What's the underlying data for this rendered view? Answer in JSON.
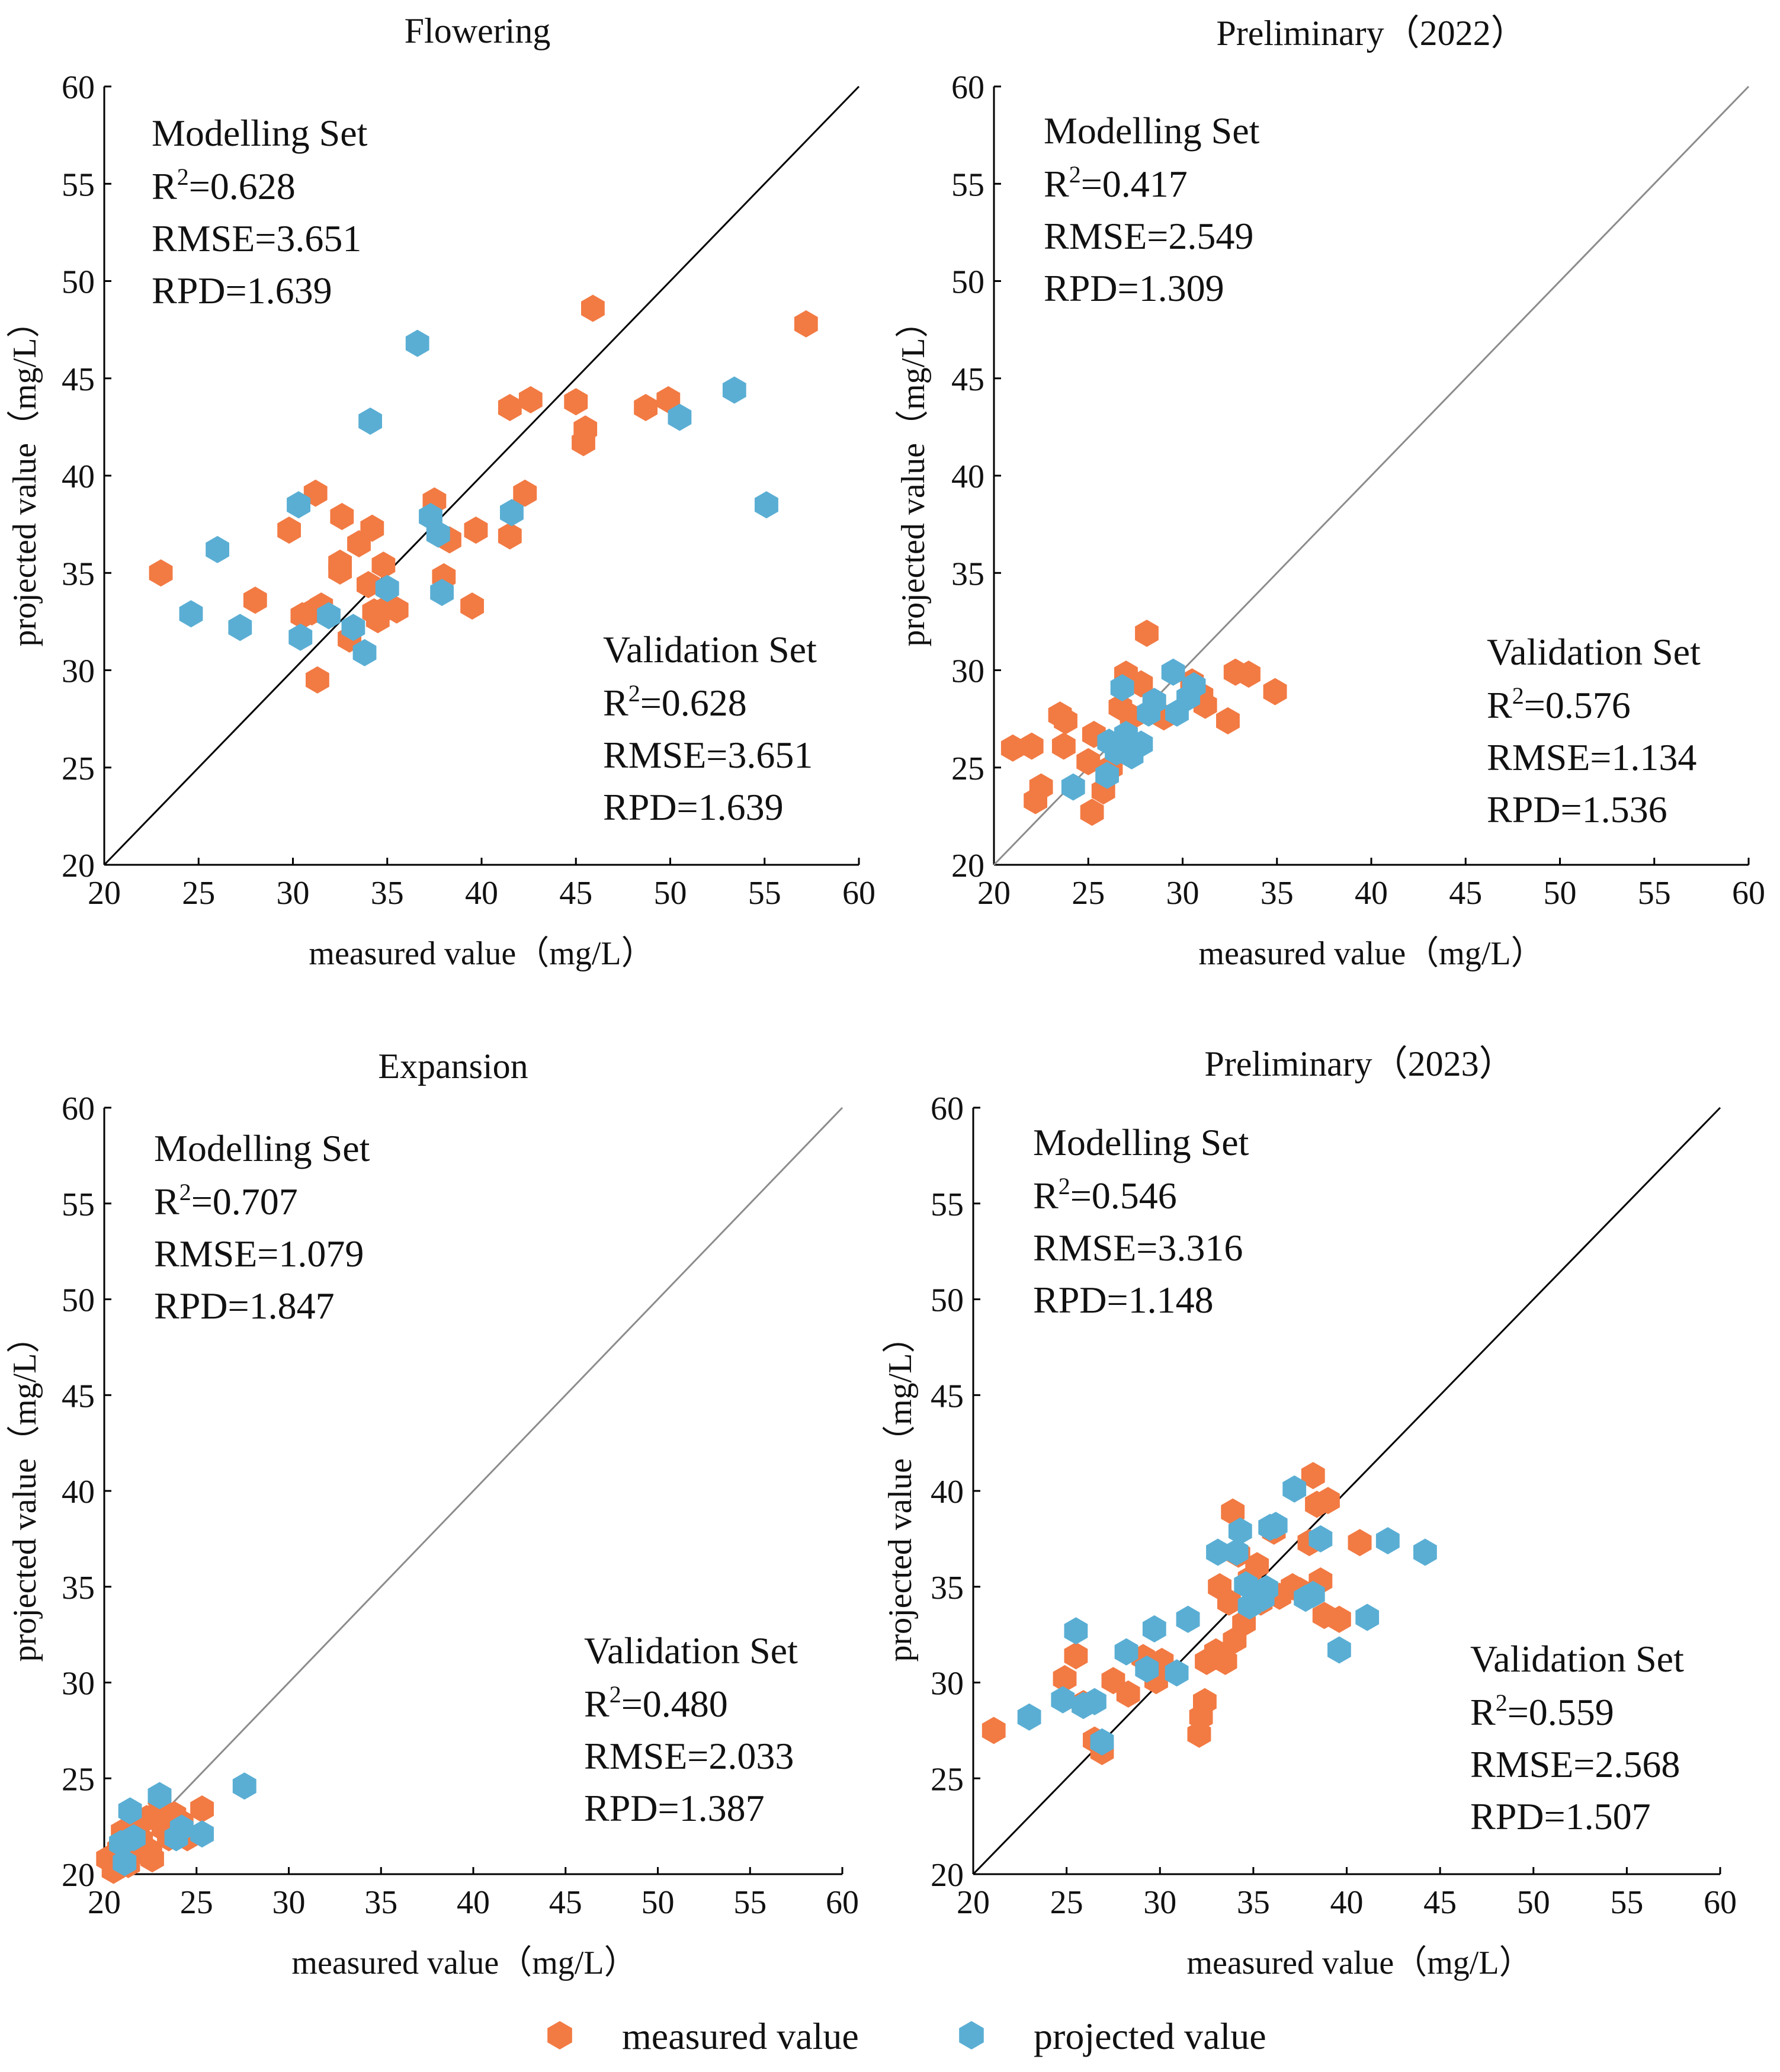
{
  "colors": {
    "measured": "#F27A43",
    "projected": "#5AAED4",
    "axis": "#000000",
    "diag_dark": "#000000",
    "diag_light": "#8c8c8c"
  },
  "legend": {
    "measured_label": "measured value",
    "projected_label": "projected value"
  },
  "chart_data": [
    {
      "type": "scatter",
      "title": "Flowering",
      "xlabel": "measured value（mg/L）",
      "ylabel": "projected value（mg/L）",
      "xlim": [
        20,
        60
      ],
      "ylim": [
        20,
        60
      ],
      "ticks": [
        "20",
        "25",
        "30",
        "35",
        "40",
        "45",
        "50",
        "55",
        "60"
      ],
      "diagonal_style": "dark",
      "modelling": {
        "heading": "Modelling Set",
        "r2_prefix": "R",
        "r2_sup": "2",
        "r2_value": "=0.628",
        "rmse": "RMSE=3.651",
        "rpd": "RPD=1.639"
      },
      "validation": {
        "heading": "Validation Set",
        "r2_prefix": "R",
        "r2_sup": "2",
        "r2_value": "=0.628",
        "rmse": "RMSE=3.651",
        "rpd": "RPD=1.639"
      },
      "series": [
        {
          "name": "measured value",
          "points": [
            [
              23,
              35
            ],
            [
              28,
              33.6
            ],
            [
              29.8,
              37.2
            ],
            [
              30.5,
              32.8
            ],
            [
              31,
              33
            ],
            [
              31.2,
              39.1
            ],
            [
              31.3,
              29.5
            ],
            [
              31.5,
              33.3
            ],
            [
              32.5,
              35.5
            ],
            [
              32.5,
              35.1
            ],
            [
              32.6,
              37.9
            ],
            [
              33,
              31.6
            ],
            [
              33.5,
              36.5
            ],
            [
              34,
              34.4
            ],
            [
              34.2,
              37.3
            ],
            [
              34.3,
              33
            ],
            [
              34.5,
              32.6
            ],
            [
              34.8,
              35.4
            ],
            [
              35,
              33.2
            ],
            [
              35.5,
              33.1
            ],
            [
              37.5,
              38.7
            ],
            [
              38,
              34.8
            ],
            [
              38.3,
              36.7
            ],
            [
              39.5,
              33.3
            ],
            [
              39.7,
              37.2
            ],
            [
              41.5,
              43.5
            ],
            [
              41.5,
              36.9
            ],
            [
              42.3,
              39.1
            ],
            [
              42.6,
              43.9
            ],
            [
              45,
              43.8
            ],
            [
              45.4,
              41.7
            ],
            [
              45.5,
              42.4
            ],
            [
              45.9,
              48.6
            ],
            [
              48.7,
              43.5
            ],
            [
              49.9,
              43.9
            ],
            [
              57.2,
              47.8
            ]
          ]
        },
        {
          "name": "projected value",
          "points": [
            [
              24.6,
              32.9
            ],
            [
              26,
              36.2
            ],
            [
              27.2,
              32.2
            ],
            [
              30.3,
              38.5
            ],
            [
              30.4,
              31.7
            ],
            [
              31.9,
              32.8
            ],
            [
              33.2,
              32.2
            ],
            [
              33.8,
              30.9
            ],
            [
              34.1,
              42.8
            ],
            [
              35,
              34.2
            ],
            [
              36.6,
              46.8
            ],
            [
              37.3,
              37.9
            ],
            [
              37.7,
              37
            ],
            [
              37.9,
              34
            ],
            [
              41.6,
              38.1
            ],
            [
              50.5,
              43
            ],
            [
              53.4,
              44.4
            ],
            [
              55.1,
              38.5
            ]
          ]
        }
      ]
    },
    {
      "type": "scatter",
      "title": "Preliminary（2022）",
      "xlabel": "measured value（mg/L）",
      "ylabel": "projected value（mg/L）",
      "xlim": [
        20,
        60
      ],
      "ylim": [
        20,
        60
      ],
      "ticks": [
        "20",
        "25",
        "30",
        "35",
        "40",
        "45",
        "50",
        "55",
        "60"
      ],
      "diagonal_style": "light",
      "modelling": {
        "heading": "Modelling Set",
        "r2_prefix": "R",
        "r2_sup": "2",
        "r2_value": "=0.417",
        "rmse": "RMSE=2.549",
        "rpd": "RPD=1.309"
      },
      "validation": {
        "heading": "Validation Set",
        "r2_prefix": "R",
        "r2_sup": "2",
        "r2_value": "=0.576",
        "rmse": "RMSE=1.134",
        "rpd": "RPD=1.536"
      },
      "series": [
        {
          "name": "measured value",
          "points": [
            [
              21,
              26
            ],
            [
              22,
              26.1
            ],
            [
              22.2,
              23.3
            ],
            [
              22.5,
              24
            ],
            [
              23.5,
              27.7
            ],
            [
              23.7,
              26.1
            ],
            [
              23.8,
              27.4
            ],
            [
              25,
              25.3
            ],
            [
              25.2,
              22.7
            ],
            [
              25.3,
              26.7
            ],
            [
              25.8,
              23.8
            ],
            [
              26.2,
              25
            ],
            [
              26.7,
              28.1
            ],
            [
              27,
              29.8
            ],
            [
              27.3,
              27.6
            ],
            [
              27.8,
              29.3
            ],
            [
              28.1,
              31.9
            ],
            [
              28.5,
              28.3
            ],
            [
              29,
              27.6
            ],
            [
              30.5,
              29.4
            ],
            [
              31,
              28.7
            ],
            [
              31.2,
              28.2
            ],
            [
              32.4,
              27.4
            ],
            [
              32.8,
              29.9
            ],
            [
              33.5,
              29.8
            ],
            [
              34.9,
              28.9
            ]
          ]
        },
        {
          "name": "projected value",
          "points": [
            [
              24.2,
              24
            ],
            [
              26,
              24.6
            ],
            [
              26.1,
              26.3
            ],
            [
              26.5,
              25.8
            ],
            [
              26.8,
              29.1
            ],
            [
              27,
              26.7
            ],
            [
              27.3,
              25.6
            ],
            [
              27.8,
              26.2
            ],
            [
              28.2,
              27.8
            ],
            [
              28.5,
              28.4
            ],
            [
              29.5,
              29.9
            ],
            [
              29.7,
              27.8
            ],
            [
              30.3,
              28.6
            ],
            [
              30.6,
              29.2
            ]
          ]
        }
      ]
    },
    {
      "type": "scatter",
      "title": "Expansion",
      "xlabel": "measured value（mg/L）",
      "ylabel": "projected value（mg/L）",
      "xlim": [
        20,
        60
      ],
      "ylim": [
        20,
        60
      ],
      "ticks": [
        "20",
        "25",
        "30",
        "35",
        "40",
        "45",
        "50",
        "55",
        "60"
      ],
      "diagonal_style": "light",
      "modelling": {
        "heading": "Modelling Set",
        "r2_prefix": "R",
        "r2_sup": "2",
        "r2_value": "=0.707",
        "rmse": "RMSE=1.079",
        "rpd": "RPD=1.847"
      },
      "validation": {
        "heading": "Validation Set",
        "r2_prefix": "R",
        "r2_sup": "2",
        "r2_value": "=0.480",
        "rmse": "RMSE=2.033",
        "rpd": "RPD=1.387"
      },
      "series": [
        {
          "name": "measured value",
          "points": [
            [
              20.2,
              20.8
            ],
            [
              20.5,
              20.2
            ],
            [
              20.8,
              21.3
            ],
            [
              21,
              22.2
            ],
            [
              21.3,
              20.5
            ],
            [
              21.5,
              21
            ],
            [
              21.8,
              22.5
            ],
            [
              22,
              21.8
            ],
            [
              22.3,
              22.9
            ],
            [
              22.5,
              21.2
            ],
            [
              22.6,
              20.8
            ],
            [
              22.8,
              23.1
            ],
            [
              23,
              24
            ],
            [
              23.2,
              22.4
            ],
            [
              23.5,
              21.9
            ],
            [
              23.8,
              23.1
            ],
            [
              24.2,
              22.7
            ],
            [
              24.5,
              21.9
            ],
            [
              25.3,
              23.4
            ]
          ]
        },
        {
          "name": "projected value",
          "points": [
            [
              20.9,
              21.6
            ],
            [
              21.1,
              20.6
            ],
            [
              21.4,
              23.3
            ],
            [
              21.6,
              21.9
            ],
            [
              23,
              24.1
            ],
            [
              23.9,
              21.9
            ],
            [
              24.2,
              22.4
            ],
            [
              25.3,
              22.1
            ],
            [
              27.6,
              24.6
            ]
          ]
        }
      ]
    },
    {
      "type": "scatter",
      "title": "Preliminary（2023）",
      "xlabel": "measured value（mg/L）",
      "ylabel": "projected value（mg/L）",
      "xlim": [
        20,
        60
      ],
      "ylim": [
        20,
        60
      ],
      "ticks": [
        "20",
        "25",
        "30",
        "35",
        "40",
        "45",
        "50",
        "55",
        "60"
      ],
      "diagonal_style": "dark",
      "modelling": {
        "heading": "Modelling Set",
        "r2_prefix": "R",
        "r2_sup": "2",
        "r2_value": "=0.546",
        "rmse": "RMSE=3.316",
        "rpd": "RPD=1.148"
      },
      "validation": {
        "heading": "Validation Set",
        "r2_prefix": "R",
        "r2_sup": "2",
        "r2_value": "=0.559",
        "rmse": "RMSE=2.568",
        "rpd": "RPD=1.507"
      },
      "series": [
        {
          "name": "measured value",
          "points": [
            [
              21.1,
              27.5
            ],
            [
              24.9,
              30.2
            ],
            [
              25.5,
              31.4
            ],
            [
              25.9,
              28.9
            ],
            [
              26.5,
              27
            ],
            [
              26.9,
              26.4
            ],
            [
              27.5,
              30.1
            ],
            [
              28.3,
              29.4
            ],
            [
              29.1,
              31.3
            ],
            [
              29.8,
              30.1
            ],
            [
              30.1,
              31.1
            ],
            [
              32.1,
              27.3
            ],
            [
              32.2,
              28.2
            ],
            [
              32.4,
              29
            ],
            [
              32.5,
              31.1
            ],
            [
              33,
              31.6
            ],
            [
              33.2,
              35
            ],
            [
              33.5,
              31.1
            ],
            [
              33.7,
              34.2
            ],
            [
              33.9,
              38.9
            ],
            [
              34,
              32.2
            ],
            [
              34.2,
              36.7
            ],
            [
              34.5,
              33.1
            ],
            [
              34.8,
              35.4
            ],
            [
              35.2,
              36.1
            ],
            [
              35.4,
              34.2
            ],
            [
              35.8,
              34.6
            ],
            [
              36.1,
              37.9
            ],
            [
              36.4,
              34.5
            ],
            [
              37.1,
              35
            ],
            [
              37.5,
              34.8
            ],
            [
              38,
              37.3
            ],
            [
              38.2,
              40.8
            ],
            [
              38.4,
              39.3
            ],
            [
              38.6,
              35.3
            ],
            [
              38.8,
              33.5
            ],
            [
              39,
              39.5
            ],
            [
              39.6,
              33.3
            ],
            [
              40.7,
              37.3
            ]
          ]
        },
        {
          "name": "projected value",
          "points": [
            [
              23,
              28.2
            ],
            [
              24.8,
              29.1
            ],
            [
              25.5,
              32.7
            ],
            [
              25.9,
              28.8
            ],
            [
              26.5,
              29
            ],
            [
              26.9,
              26.9
            ],
            [
              28.2,
              31.6
            ],
            [
              29.3,
              30.7
            ],
            [
              29.7,
              32.8
            ],
            [
              30.9,
              30.5
            ],
            [
              31.5,
              33.3
            ],
            [
              33.1,
              36.8
            ],
            [
              34.1,
              36.8
            ],
            [
              34.3,
              37.9
            ],
            [
              34.6,
              35.1
            ],
            [
              34.8,
              34
            ],
            [
              35.5,
              34.4
            ],
            [
              35.7,
              34.9
            ],
            [
              35.9,
              38.1
            ],
            [
              36.2,
              38.2
            ],
            [
              37.2,
              40.1
            ],
            [
              37.8,
              34.4
            ],
            [
              38.2,
              34.6
            ],
            [
              38.6,
              37.5
            ],
            [
              39.6,
              31.7
            ],
            [
              41.1,
              33.4
            ],
            [
              42.2,
              37.4
            ],
            [
              44.2,
              36.8
            ]
          ]
        }
      ]
    }
  ]
}
